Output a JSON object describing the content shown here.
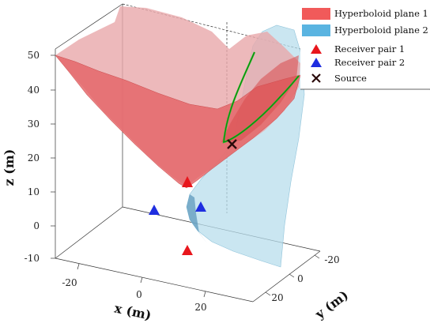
{
  "chart_data": {
    "type": "surface3d",
    "title": "",
    "xlabel": "x (m)",
    "ylabel": "y (m)",
    "zlabel": "z (m)",
    "x_ticks": [
      "-20",
      "0",
      "20"
    ],
    "y_ticks": [
      "-20",
      "0",
      "20"
    ],
    "z_ticks": [
      "50",
      "40",
      "30",
      "20",
      "10",
      "0",
      "-10"
    ],
    "xlim": [
      -30,
      30
    ],
    "ylim": [
      -30,
      30
    ],
    "zlim": [
      -12,
      52
    ],
    "grid": false,
    "legend_position": "top-right",
    "colors": {
      "plane1": "#f15a5a",
      "plane2": "#5ab4e1",
      "receiver1": "#e8161c",
      "receiver2": "#1f2ee0",
      "source": "#2a0a0a",
      "intersection": "#18c21a"
    },
    "legend": [
      {
        "label": "Hyperboloid plane 1",
        "symbol": "patch",
        "color": "#f15a5a"
      },
      {
        "label": "Hyperboloid plane 2",
        "symbol": "patch",
        "color": "#5ab4e1"
      },
      {
        "label": "Receiver pair 1",
        "symbol": "triangle",
        "color": "#e8161c"
      },
      {
        "label": "Receiver pair 2",
        "symbol": "triangle",
        "color": "#1f2ee0"
      },
      {
        "label": "Source",
        "symbol": "cross",
        "color": "#2a0a0a"
      }
    ],
    "series": [
      {
        "name": "Receiver pair 1",
        "points": [
          {
            "x": 3,
            "y": 5,
            "z": 10
          },
          {
            "x": 3,
            "y": 5,
            "z": -8
          }
        ]
      },
      {
        "name": "Receiver pair 2",
        "points": [
          {
            "x": -10,
            "y": 0,
            "z": 0
          },
          {
            "x": 6,
            "y": 0,
            "z": 0
          }
        ]
      },
      {
        "name": "Source",
        "points": [
          {
            "x": 15,
            "y": -12,
            "z": 22
          }
        ]
      }
    ]
  }
}
